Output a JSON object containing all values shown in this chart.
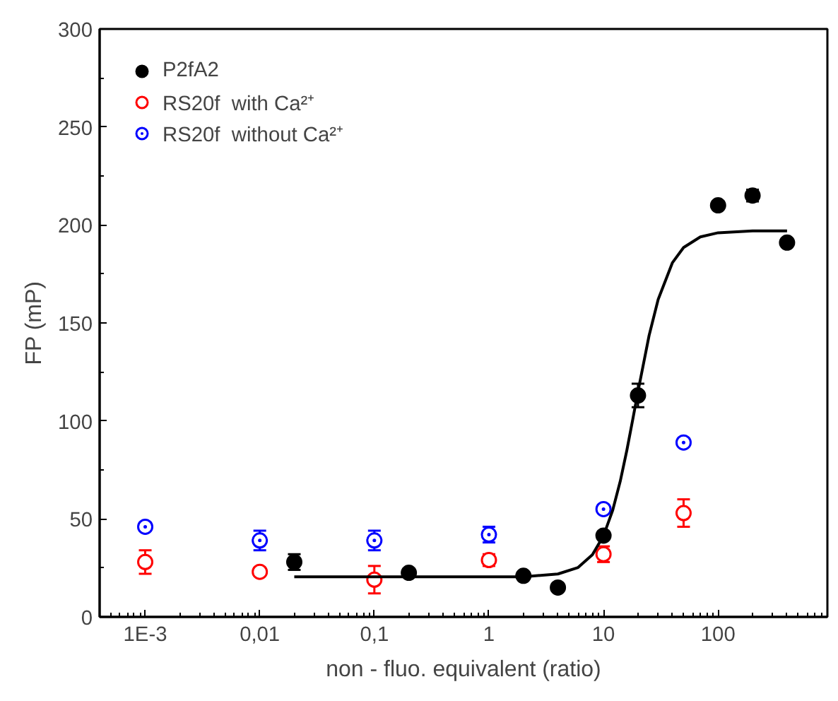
{
  "chart_data": {
    "type": "scatter",
    "xlabel": "non - fluo. equivalent (ratio)",
    "ylabel": "FP (mP)",
    "log": "x",
    "xlim": [
      0.0004,
      900
    ],
    "ylim": [
      0,
      300
    ],
    "xticks": [
      {
        "value": 0.001,
        "label": "1E-3"
      },
      {
        "value": 0.01,
        "label": "0,01"
      },
      {
        "value": 0.1,
        "label": "0,1"
      },
      1,
      10,
      100
    ],
    "yticks": [
      0,
      50,
      100,
      150,
      200,
      250,
      300
    ],
    "grid": false,
    "legend": "top left",
    "series": [
      {
        "name": "P2fA2",
        "color": "#000000",
        "marker": "circle",
        "x": [
          0.02,
          0.2,
          2,
          4,
          10,
          20,
          100,
          200,
          400
        ],
        "values": [
          28,
          22.5,
          21,
          15,
          41.5,
          113,
          210,
          215,
          191
        ],
        "errors": [
          4,
          2,
          1,
          null,
          2,
          6,
          2,
          3,
          2
        ]
      },
      {
        "name": "RS20f  with Ca²⁺",
        "color": "#ff0000",
        "marker": "circle_open",
        "x": [
          0.001,
          0.01,
          0.1,
          1,
          10,
          50
        ],
        "values": [
          28,
          23,
          19,
          29,
          32,
          53
        ],
        "errors": [
          6,
          2,
          7,
          3,
          4,
          7
        ]
      },
      {
        "name": "RS20f  without Ca²⁺",
        "color": "#0000ff",
        "marker": "circle_dot",
        "x": [
          0.001,
          0.01,
          0.1,
          1,
          10,
          50
        ],
        "values": [
          46,
          39,
          39,
          42,
          55,
          89
        ],
        "errors": [
          2,
          5,
          5,
          4,
          2,
          2
        ]
      },
      {
        "type": "line",
        "color": "#000000",
        "x": [
          0.02,
          0.2,
          1,
          2,
          4,
          6,
          8,
          10,
          12,
          14,
          16,
          18,
          20,
          25,
          30,
          40,
          50,
          70,
          100,
          200,
          400
        ],
        "values": [
          20.5,
          20.5,
          20.5,
          20.5,
          21.9,
          25.2,
          31.7,
          41.4,
          54.2,
          69.2,
          85.1,
          100.7,
          115,
          143.6,
          162,
          180.8,
          188.5,
          193.9,
          196,
          197,
          197
        ]
      }
    ]
  }
}
